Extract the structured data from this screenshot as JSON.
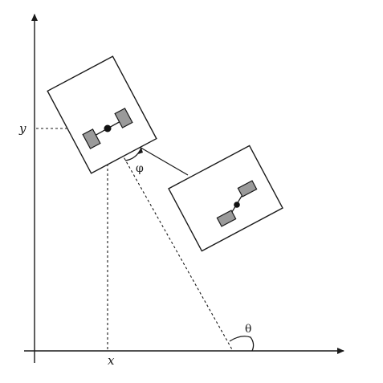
{
  "labels": {
    "y": "y",
    "x": "x",
    "phi": "φ",
    "theta": "θ"
  }
}
